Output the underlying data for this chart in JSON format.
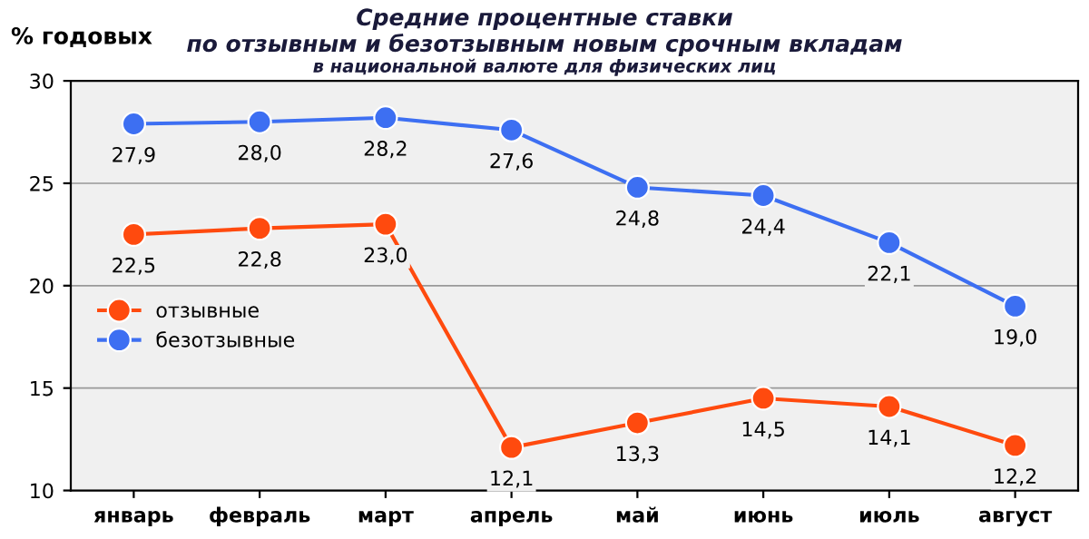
{
  "chart_data": {
    "type": "line",
    "title": "Средние процентные ставки\nпо отзывным и безотзывным новым срочным вкладам",
    "subtitle": "в национальной валюте для физических лиц",
    "ylabel": "% годовых",
    "categories": [
      "январь",
      "февраль",
      "март",
      "апрель",
      "май",
      "июнь",
      "июль",
      "август"
    ],
    "series": [
      {
        "name": "отзывные",
        "color": "#ff4a0e",
        "values": [
          22.5,
          22.8,
          23.0,
          12.1,
          13.3,
          14.5,
          14.1,
          12.2
        ],
        "value_labels": [
          "22,5",
          "22,8",
          "23,0",
          "12,1",
          "13,3",
          "14,5",
          "14,1",
          "12,2"
        ]
      },
      {
        "name": "безотзывные",
        "color": "#3d6ff2",
        "values": [
          27.9,
          28.0,
          28.2,
          27.6,
          24.8,
          24.4,
          22.1,
          19.0
        ],
        "value_labels": [
          "27,9",
          "28,0",
          "28,2",
          "27,6",
          "24,8",
          "24,4",
          "22,1",
          "19,0"
        ]
      }
    ],
    "ylim": [
      10,
      30
    ],
    "yticks": [
      10,
      15,
      20,
      25,
      30
    ],
    "grid": "y",
    "legend": "center left",
    "marker": "circle",
    "line_style": "solid"
  }
}
